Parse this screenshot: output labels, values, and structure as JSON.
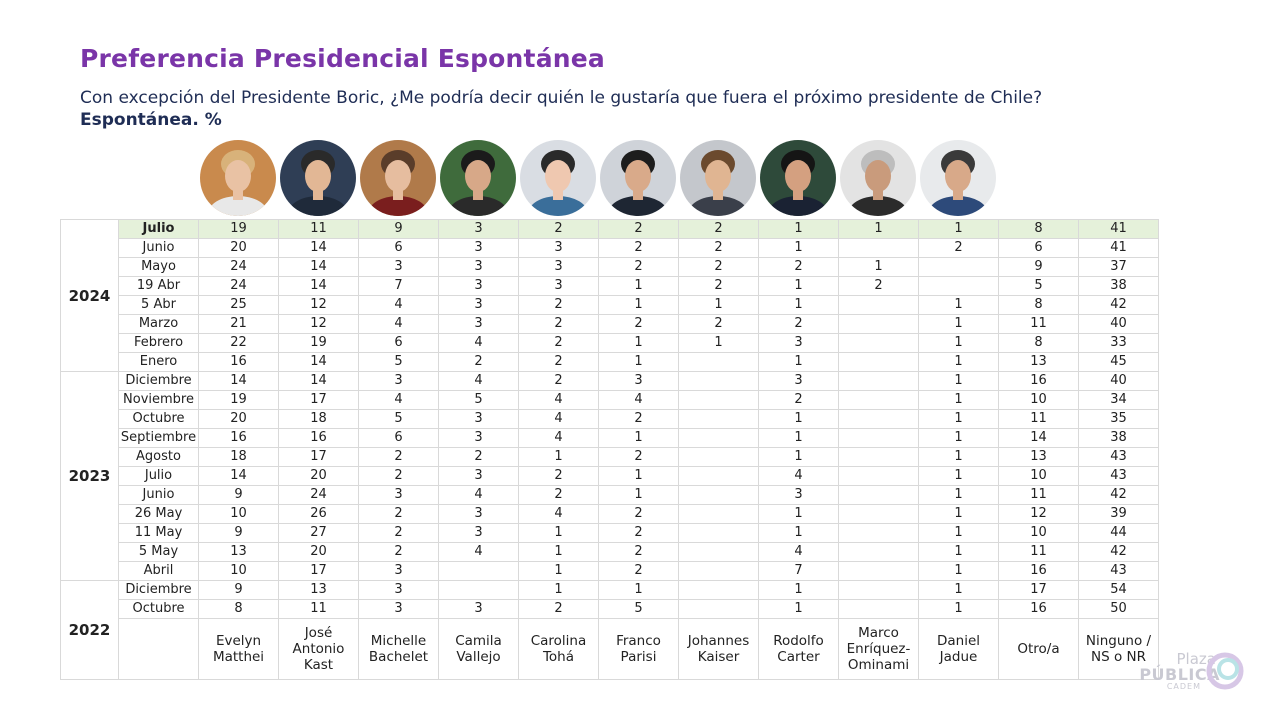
{
  "title": "Preferencia Presidencial Espontánea",
  "subtitle": "Con excepción del Presidente Boric, ¿Me podría decir quién le gustaría que fuera el próximo presidente de Chile?",
  "subtitle2": "Espontánea. %",
  "logo": {
    "line1": "Plaza",
    "line2": "PÚBLICA",
    "line3": "CADEM"
  },
  "colors": {
    "title": "#7a35a8",
    "subtitle": "#1f2d55",
    "highlight_row": "#e5f1da",
    "grid": "#d9d9d9"
  },
  "chart_data": {
    "type": "table",
    "title": "Preferencia Presidencial Espontánea",
    "columns": [
      "Evelyn Matthei",
      "José Antonio Kast",
      "Michelle Bachelet",
      "Camila Vallejo",
      "Carolina Tohá",
      "Franco Parisi",
      "Johannes Kaiser",
      "Rodolfo Carter",
      "Marco Enríquez-Ominami",
      "Daniel Jadue",
      "Otro/a",
      "Ninguno / NS o NR"
    ],
    "groups": [
      {
        "year": "2024",
        "rows": [
          {
            "label": "Julio",
            "highlight": true,
            "values": [
              "19",
              "11",
              "9",
              "3",
              "2",
              "2",
              "2",
              "1",
              "1",
              "1",
              "8",
              "41"
            ]
          },
          {
            "label": "Junio",
            "values": [
              "20",
              "14",
              "6",
              "3",
              "3",
              "2",
              "2",
              "1",
              "",
              "2",
              "6",
              "41"
            ]
          },
          {
            "label": "Mayo",
            "values": [
              "24",
              "14",
              "3",
              "3",
              "3",
              "2",
              "2",
              "2",
              "1",
              "",
              "9",
              "37"
            ]
          },
          {
            "label": "19 Abr",
            "values": [
              "24",
              "14",
              "7",
              "3",
              "3",
              "1",
              "2",
              "1",
              "2",
              "",
              "5",
              "38"
            ]
          },
          {
            "label": "5 Abr",
            "values": [
              "25",
              "12",
              "4",
              "3",
              "2",
              "1",
              "1",
              "1",
              "",
              "1",
              "8",
              "42"
            ]
          },
          {
            "label": "Marzo",
            "values": [
              "21",
              "12",
              "4",
              "3",
              "2",
              "2",
              "2",
              "2",
              "",
              "1",
              "11",
              "40"
            ]
          },
          {
            "label": "Febrero",
            "values": [
              "22",
              "19",
              "6",
              "4",
              "2",
              "1",
              "1",
              "3",
              "",
              "1",
              "8",
              "33"
            ]
          },
          {
            "label": "Enero",
            "values": [
              "16",
              "14",
              "5",
              "2",
              "2",
              "1",
              "",
              "1",
              "",
              "1",
              "13",
              "45"
            ]
          }
        ]
      },
      {
        "year": "2023",
        "rows": [
          {
            "label": "Diciembre",
            "values": [
              "14",
              "14",
              "3",
              "4",
              "2",
              "3",
              "",
              "3",
              "",
              "1",
              "16",
              "40"
            ]
          },
          {
            "label": "Noviembre",
            "values": [
              "19",
              "17",
              "4",
              "5",
              "4",
              "4",
              "",
              "2",
              "",
              "1",
              "10",
              "34"
            ]
          },
          {
            "label": "Octubre",
            "values": [
              "20",
              "18",
              "5",
              "3",
              "4",
              "2",
              "",
              "1",
              "",
              "1",
              "11",
              "35"
            ]
          },
          {
            "label": "Septiembre",
            "values": [
              "16",
              "16",
              "6",
              "3",
              "4",
              "1",
              "",
              "1",
              "",
              "1",
              "14",
              "38"
            ]
          },
          {
            "label": "Agosto",
            "values": [
              "18",
              "17",
              "2",
              "2",
              "1",
              "2",
              "",
              "1",
              "",
              "1",
              "13",
              "43"
            ]
          },
          {
            "label": "Julio",
            "values": [
              "14",
              "20",
              "2",
              "3",
              "2",
              "1",
              "",
              "4",
              "",
              "1",
              "10",
              "43"
            ]
          },
          {
            "label": "Junio",
            "values": [
              "9",
              "24",
              "3",
              "4",
              "2",
              "1",
              "",
              "3",
              "",
              "1",
              "11",
              "42"
            ]
          },
          {
            "label": "26 May",
            "values": [
              "10",
              "26",
              "2",
              "3",
              "4",
              "2",
              "",
              "1",
              "",
              "1",
              "12",
              "39"
            ]
          },
          {
            "label": "11 May",
            "values": [
              "9",
              "27",
              "2",
              "3",
              "1",
              "2",
              "",
              "1",
              "",
              "1",
              "10",
              "44"
            ]
          },
          {
            "label": "5 May",
            "values": [
              "13",
              "20",
              "2",
              "4",
              "1",
              "2",
              "",
              "4",
              "",
              "1",
              "11",
              "42"
            ]
          },
          {
            "label": "Abril",
            "values": [
              "10",
              "17",
              "3",
              "",
              "1",
              "2",
              "",
              "7",
              "",
              "1",
              "16",
              "43"
            ]
          }
        ]
      },
      {
        "year": "2022",
        "rows": [
          {
            "label": "Diciembre",
            "values": [
              "9",
              "13",
              "3",
              "",
              "1",
              "1",
              "",
              "1",
              "",
              "1",
              "17",
              "54"
            ]
          },
          {
            "label": "Octubre",
            "values": [
              "8",
              "11",
              "3",
              "3",
              "2",
              "5",
              "",
              "1",
              "",
              "1",
              "16",
              "50"
            ]
          }
        ]
      }
    ]
  }
}
